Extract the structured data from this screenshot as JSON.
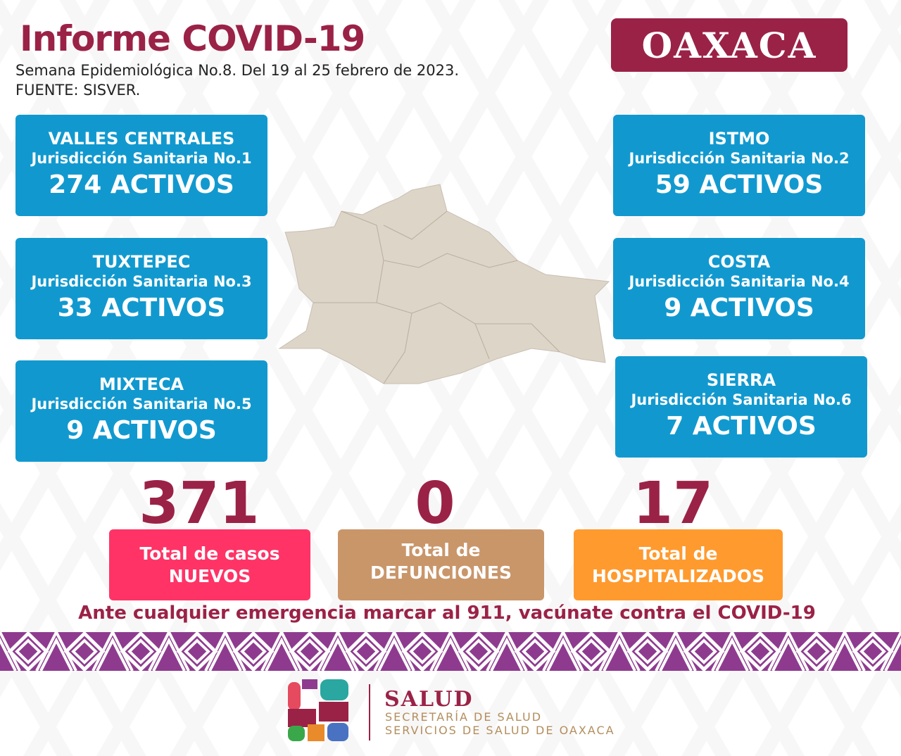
{
  "header": {
    "title": "Informe COVID-19",
    "week": "Semana Epidemiológica No.8. Del 19 al 25 febrero de 2023.",
    "source": "FUENTE: SISVER.",
    "state": "OAXACA"
  },
  "regions": [
    {
      "name": "VALLES CENTRALES",
      "jurisdiction": "Jurisdicción Sanitaria No.1",
      "active": "274 ACTIVOS"
    },
    {
      "name": "ISTMO",
      "jurisdiction": "Jurisdicción Sanitaria No.2",
      "active": "59 ACTIVOS"
    },
    {
      "name": "TUXTEPEC",
      "jurisdiction": "Jurisdicción Sanitaria No.3",
      "active": "33 ACTIVOS"
    },
    {
      "name": "COSTA",
      "jurisdiction": "Jurisdicción Sanitaria No.4",
      "active": "9 ACTIVOS"
    },
    {
      "name": "MIXTECA",
      "jurisdiction": "Jurisdicción Sanitaria No.5",
      "active": "9 ACTIVOS"
    },
    {
      "name": "SIERRA",
      "jurisdiction": "Jurisdicción Sanitaria No.6",
      "active": "7 ACTIVOS"
    }
  ],
  "totals": [
    {
      "value": "371",
      "line1": "Total de casos",
      "line2": "NUEVOS",
      "color": "#ff3366"
    },
    {
      "value": "0",
      "line1": "Total de",
      "line2": "DEFUNCIONES",
      "color": "#c9966a"
    },
    {
      "value": "17",
      "line1": "Total de",
      "line2": "HOSPITALIZADOS",
      "color": "#ff9a2e"
    }
  ],
  "message": "Ante cualquier emergencia marcar al 911, vacúnate contra el COVID-19",
  "footer": {
    "logo_title": "SALUD",
    "line1": "SECRETARÍA DE SALUD",
    "line2": "SERVICIOS DE SALUD DE OAXACA"
  },
  "colors": {
    "brand": "#9b2247",
    "card": "#1199cf",
    "band": "#8e3b8f",
    "map": "#ddd5c8"
  }
}
